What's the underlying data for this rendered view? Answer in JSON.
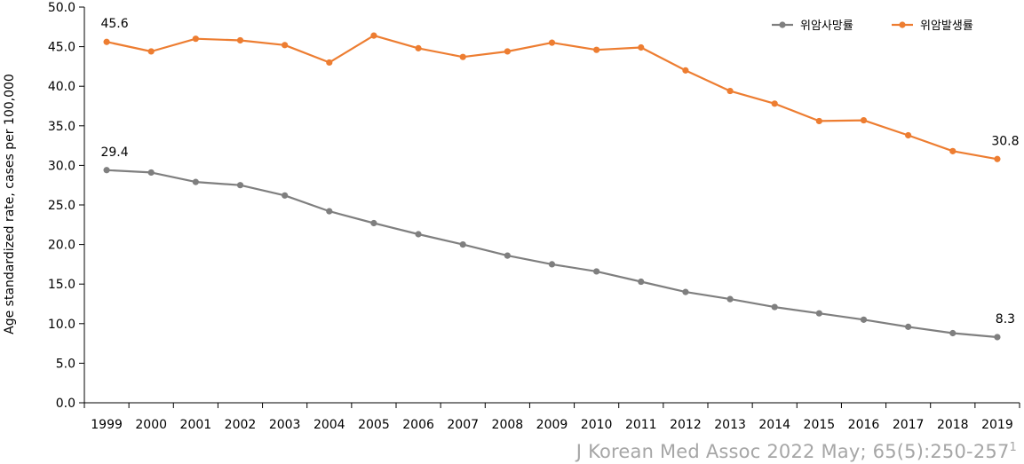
{
  "chart_data": {
    "type": "line",
    "ylabel": "Age standardized rate, cases per 100,000",
    "xlabel": "",
    "ylim": [
      0,
      50
    ],
    "y_ticks": [
      "0.0",
      "5.0",
      "10.0",
      "15.0",
      "20.0",
      "25.0",
      "30.0",
      "35.0",
      "40.0",
      "45.0",
      "50.0"
    ],
    "x": [
      "1999",
      "2000",
      "2001",
      "2002",
      "2003",
      "2004",
      "2005",
      "2006",
      "2007",
      "2008",
      "2009",
      "2010",
      "2011",
      "2012",
      "2013",
      "2014",
      "2015",
      "2016",
      "2017",
      "2018",
      "2019"
    ],
    "series": [
      {
        "name": "위암사망률",
        "color": "#7f7f7f",
        "values": [
          29.4,
          29.1,
          27.9,
          27.5,
          26.2,
          24.2,
          22.7,
          21.3,
          20.0,
          18.6,
          17.5,
          16.6,
          15.3,
          14.0,
          13.1,
          12.1,
          11.3,
          10.5,
          9.6,
          8.8,
          8.3
        ]
      },
      {
        "name": "위암발생률",
        "color": "#ed7d31",
        "values": [
          45.6,
          44.4,
          46.0,
          45.8,
          45.2,
          43.0,
          46.4,
          44.8,
          43.7,
          44.4,
          45.5,
          44.6,
          44.9,
          42.0,
          39.4,
          37.8,
          35.6,
          35.7,
          33.8,
          31.8,
          30.8
        ]
      }
    ],
    "annotations": [
      {
        "series": 0,
        "index": 0,
        "text": "29.4"
      },
      {
        "series": 0,
        "index": 20,
        "text": "8.3"
      },
      {
        "series": 1,
        "index": 0,
        "text": "45.6"
      },
      {
        "series": 1,
        "index": 20,
        "text": "30.8"
      }
    ],
    "legend": {
      "placement": "top-right",
      "items": [
        "위암사망률",
        "위암발생률"
      ]
    },
    "grid": false
  },
  "citation": {
    "text": "J Korean Med Assoc 2022 May; 65(5):250-257",
    "superscript": "1"
  }
}
